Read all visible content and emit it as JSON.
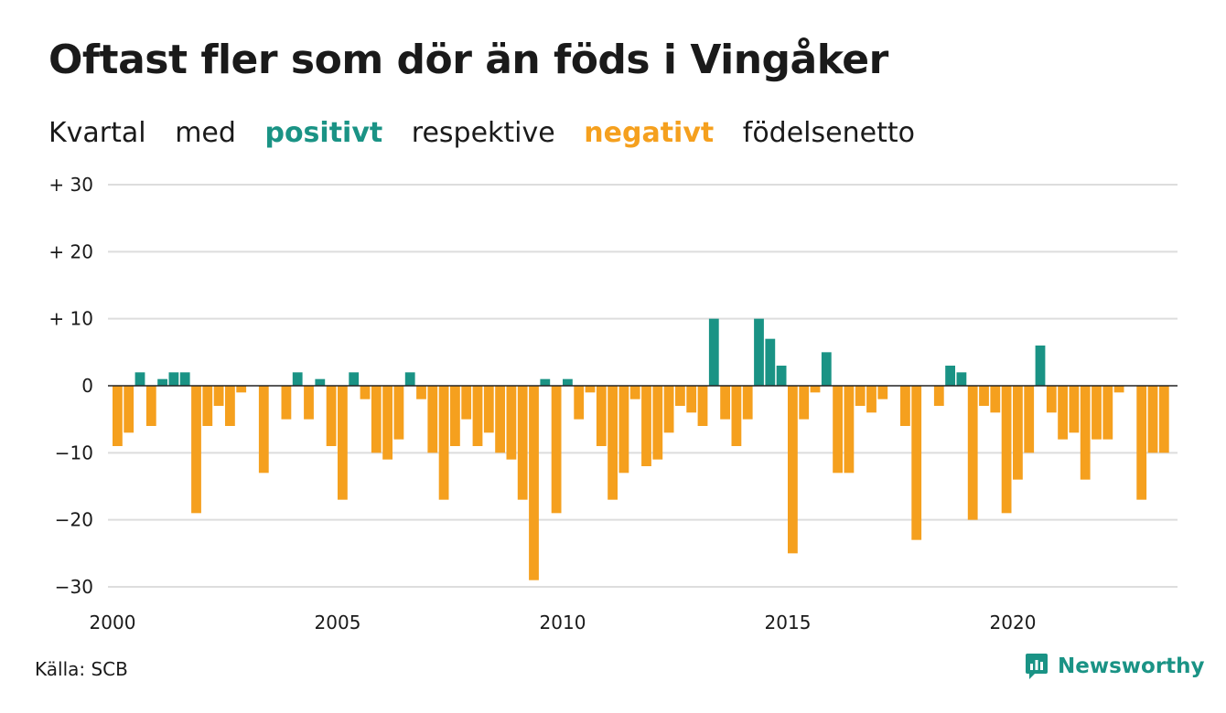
{
  "title": "Oftast fler som dör än föds i Vingåker",
  "subtitle": {
    "w1": "Kvartal",
    "w2": "med",
    "positive": "positivt",
    "w3": "respektive",
    "negative": "negativt",
    "w4": "födelsenetto"
  },
  "source": "Källa: SCB",
  "brand": "Newsworthy",
  "colors": {
    "positive": "#1a9385",
    "negative": "#f5a01e",
    "grid": "#dddddd",
    "zero": "#222222",
    "text": "#1a1a1a"
  },
  "chart_data": {
    "type": "bar",
    "x_start_year": 2000,
    "periods_per_year": 4,
    "ylim": [
      -30,
      30
    ],
    "yticks": [
      {
        "value": 30,
        "label": "+ 30"
      },
      {
        "value": 20,
        "label": "+ 20"
      },
      {
        "value": 10,
        "label": "+ 10"
      },
      {
        "value": 0,
        "label": "0"
      },
      {
        "value": -10,
        "label": "−10"
      },
      {
        "value": -20,
        "label": "−20"
      },
      {
        "value": -30,
        "label": "−30"
      }
    ],
    "xticks": [
      "2000",
      "2005",
      "2010",
      "2015",
      "2020"
    ],
    "values": [
      -9,
      -7,
      2,
      -6,
      1,
      2,
      2,
      -19,
      -6,
      -3,
      -6,
      -1,
      0,
      -13,
      0,
      -5,
      2,
      -5,
      1,
      -9,
      -17,
      2,
      -2,
      -10,
      -11,
      -8,
      2,
      -2,
      -10,
      -17,
      -9,
      -5,
      -9,
      -7,
      -10,
      -11,
      -17,
      -29,
      1,
      -19,
      1,
      -5,
      -1,
      -9,
      -17,
      -13,
      -2,
      -12,
      -11,
      -7,
      -3,
      -4,
      -6,
      10,
      -5,
      -9,
      -5,
      10,
      7,
      3,
      -25,
      -5,
      -1,
      5,
      -13,
      -13,
      -3,
      -4,
      -2,
      0,
      -6,
      -23,
      0,
      -3,
      3,
      2,
      -20,
      -3,
      -4,
      -19,
      -14,
      -10,
      6,
      -4,
      -8,
      -7,
      -14,
      -8,
      -8,
      -1,
      0,
      -17,
      -10,
      -10
    ]
  }
}
